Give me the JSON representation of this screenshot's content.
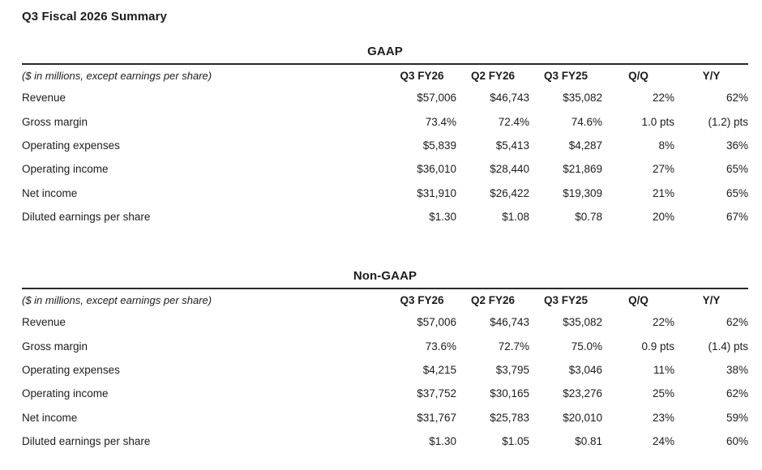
{
  "page": {
    "title": "Q3 Fiscal 2026 Summary"
  },
  "colors": {
    "background": "#ffffff",
    "text": "#1c1c1c",
    "rule": "#2a2a2a"
  },
  "tables": [
    {
      "title": "GAAP",
      "caption": "($ in millions, except earnings per share)",
      "columns": [
        "Q3 FY26",
        "Q2 FY26",
        "Q3 FY25",
        "Q/Q",
        "Y/Y"
      ],
      "rows": [
        {
          "label": "Revenue",
          "values": [
            "$57,006",
            "$46,743",
            "$35,082",
            "22%",
            "62%"
          ]
        },
        {
          "label": "Gross margin",
          "values": [
            "73.4%",
            "72.4%",
            "74.6%",
            "1.0 pts",
            "(1.2) pts"
          ]
        },
        {
          "label": "Operating expenses",
          "values": [
            "$5,839",
            "$5,413",
            "$4,287",
            "8%",
            "36%"
          ]
        },
        {
          "label": "Operating income",
          "values": [
            "$36,010",
            "$28,440",
            "$21,869",
            "27%",
            "65%"
          ]
        },
        {
          "label": "Net income",
          "values": [
            "$31,910",
            "$26,422",
            "$19,309",
            "21%",
            "65%"
          ]
        },
        {
          "label": "Diluted earnings per share",
          "values": [
            "$1.30",
            "$1.08",
            "$0.78",
            "20%",
            "67%"
          ]
        }
      ]
    },
    {
      "title": "Non-GAAP",
      "caption": "($ in millions, except earnings per share)",
      "columns": [
        "Q3 FY26",
        "Q2 FY26",
        "Q3 FY25",
        "Q/Q",
        "Y/Y"
      ],
      "rows": [
        {
          "label": "Revenue",
          "values": [
            "$57,006",
            "$46,743",
            "$35,082",
            "22%",
            "62%"
          ]
        },
        {
          "label": "Gross margin",
          "values": [
            "73.6%",
            "72.7%",
            "75.0%",
            "0.9 pts",
            "(1.4) pts"
          ]
        },
        {
          "label": "Operating expenses",
          "values": [
            "$4,215",
            "$3,795",
            "$3,046",
            "11%",
            "38%"
          ]
        },
        {
          "label": "Operating income",
          "values": [
            "$37,752",
            "$30,165",
            "$23,276",
            "25%",
            "62%"
          ]
        },
        {
          "label": "Net income",
          "values": [
            "$31,767",
            "$25,783",
            "$20,010",
            "23%",
            "59%"
          ]
        },
        {
          "label": "Diluted earnings per share",
          "values": [
            "$1.30",
            "$1.05",
            "$0.81",
            "24%",
            "60%"
          ]
        }
      ]
    }
  ]
}
